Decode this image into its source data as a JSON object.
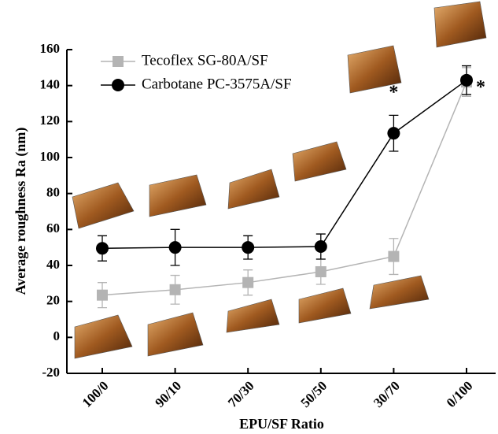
{
  "chart_data": {
    "type": "line",
    "x_label": "EPU/SF Ratio",
    "y_label": "Average roughness Ra (nm)",
    "categories": [
      "100/0",
      "90/10",
      "70/30",
      "50/50",
      "30/70",
      "0/100"
    ],
    "series": [
      {
        "name": "Tecoflex SG-80A/SF",
        "color": "#b4b4b4",
        "marker": "square",
        "values": [
          23.5,
          26.5,
          30.5,
          36.5,
          45,
          142
        ],
        "errors": [
          7,
          8,
          7,
          7,
          10,
          8
        ]
      },
      {
        "name": "Carbotane PC-3575A/SF",
        "color": "#000000",
        "marker": "circle",
        "values": [
          49.5,
          50,
          50,
          50.5,
          113.5,
          143
        ],
        "errors": [
          7,
          10,
          6.5,
          7,
          10,
          8
        ]
      }
    ],
    "annotations": [
      {
        "text": "*",
        "category": 4,
        "y": 138
      },
      {
        "text": "*",
        "category": 5,
        "y": 141
      }
    ],
    "ylim": [
      -20,
      160
    ],
    "yticks": [
      -20,
      0,
      20,
      40,
      60,
      80,
      100,
      120,
      140,
      160
    ],
    "legend": "upper left"
  }
}
